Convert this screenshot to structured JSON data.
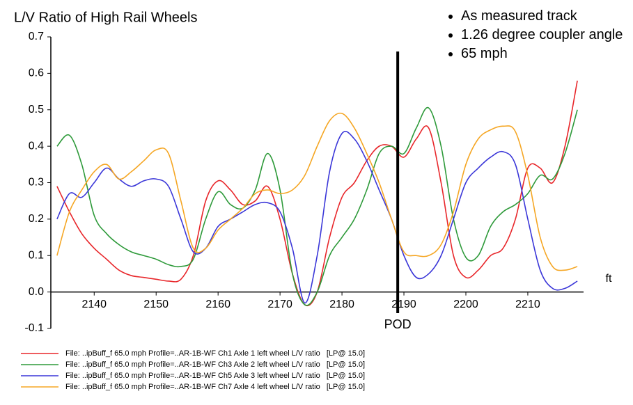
{
  "chart_data": {
    "type": "line",
    "title": "L/V Ratio of High Rail Wheels",
    "notes": [
      "As measured track",
      "1.26 degree coupler angle",
      "65 mph"
    ],
    "x_label": "ft",
    "marker": {
      "label": "POD",
      "x": 2189
    },
    "x": [
      2134,
      2136,
      2138,
      2140,
      2142,
      2144,
      2146,
      2148,
      2150,
      2152,
      2154,
      2156,
      2158,
      2160,
      2162,
      2164,
      2166,
      2168,
      2170,
      2172,
      2174,
      2176,
      2178,
      2180,
      2182,
      2184,
      2186,
      2188,
      2190,
      2192,
      2194,
      2196,
      2198,
      2200,
      2202,
      2204,
      2206,
      2208,
      2210,
      2212,
      2214,
      2216,
      2218
    ],
    "series": [
      {
        "name": "File: ..ipBuff_f 65.0 mph Profile=..AR-1B-WF Ch1 Axle 1 left wheel L/V ratio   [LP@ 15.0]",
        "color": "#e8262a",
        "values": [
          0.29,
          0.22,
          0.16,
          0.12,
          0.09,
          0.06,
          0.045,
          0.04,
          0.035,
          0.03,
          0.035,
          0.1,
          0.25,
          0.305,
          0.28,
          0.24,
          0.25,
          0.29,
          0.2,
          0.05,
          -0.035,
          0.0,
          0.15,
          0.26,
          0.3,
          0.36,
          0.4,
          0.4,
          0.37,
          0.42,
          0.45,
          0.3,
          0.1,
          0.04,
          0.06,
          0.1,
          0.12,
          0.2,
          0.34,
          0.34,
          0.3,
          0.4,
          0.58
        ]
      },
      {
        "name": "File: ..ipBuff_f 65.0 mph Profile=..AR-1B-WF Ch3 Axle 2 left wheel L/V ratio   [LP@ 15.0]",
        "color": "#2e9a3a",
        "values": [
          0.4,
          0.43,
          0.35,
          0.21,
          0.16,
          0.13,
          0.11,
          0.1,
          0.09,
          0.075,
          0.07,
          0.09,
          0.2,
          0.275,
          0.24,
          0.23,
          0.28,
          0.38,
          0.28,
          0.05,
          -0.035,
          0.0,
          0.1,
          0.15,
          0.2,
          0.28,
          0.38,
          0.4,
          0.38,
          0.45,
          0.505,
          0.4,
          0.2,
          0.095,
          0.1,
          0.18,
          0.22,
          0.24,
          0.27,
          0.32,
          0.31,
          0.38,
          0.5
        ]
      },
      {
        "name": "File: ..ipBuff_f 65.0 mph Profile=..AR-1B-WF Ch5 Axle 3 left wheel L/V ratio   [LP@ 15.0]",
        "color": "#3a36d8",
        "values": [
          0.2,
          0.27,
          0.26,
          0.3,
          0.34,
          0.31,
          0.29,
          0.305,
          0.31,
          0.29,
          0.2,
          0.11,
          0.12,
          0.18,
          0.2,
          0.22,
          0.24,
          0.245,
          0.22,
          0.12,
          -0.03,
          0.1,
          0.33,
          0.435,
          0.42,
          0.36,
          0.28,
          0.2,
          0.1,
          0.04,
          0.05,
          0.1,
          0.2,
          0.3,
          0.34,
          0.37,
          0.385,
          0.35,
          0.2,
          0.06,
          0.01,
          0.01,
          0.03
        ]
      },
      {
        "name": "File: ..ipBuff_f 65.0 mph Profile=..AR-1B-WF Ch7 Axle 4 left wheel L/V ratio   [LP@ 15.0]",
        "color": "#f5a623",
        "values": [
          0.1,
          0.22,
          0.28,
          0.33,
          0.35,
          0.31,
          0.33,
          0.36,
          0.39,
          0.38,
          0.25,
          0.12,
          0.12,
          0.17,
          0.2,
          0.23,
          0.27,
          0.28,
          0.27,
          0.28,
          0.32,
          0.4,
          0.47,
          0.49,
          0.45,
          0.38,
          0.3,
          0.2,
          0.11,
          0.1,
          0.1,
          0.13,
          0.22,
          0.35,
          0.42,
          0.445,
          0.455,
          0.44,
          0.32,
          0.15,
          0.07,
          0.06,
          0.07
        ]
      }
    ],
    "xlim": [
      2133,
      2219
    ],
    "xticks": [
      2140,
      2150,
      2160,
      2170,
      2180,
      2190,
      2200,
      2210
    ],
    "ylim": [
      -0.1,
      0.7
    ],
    "yticks": [
      -0.1,
      {
        "value": 0,
        "label": "0.0"
      },
      0.1,
      0.2,
      0.3,
      0.4,
      0.5,
      0.6,
      0.7
    ]
  }
}
